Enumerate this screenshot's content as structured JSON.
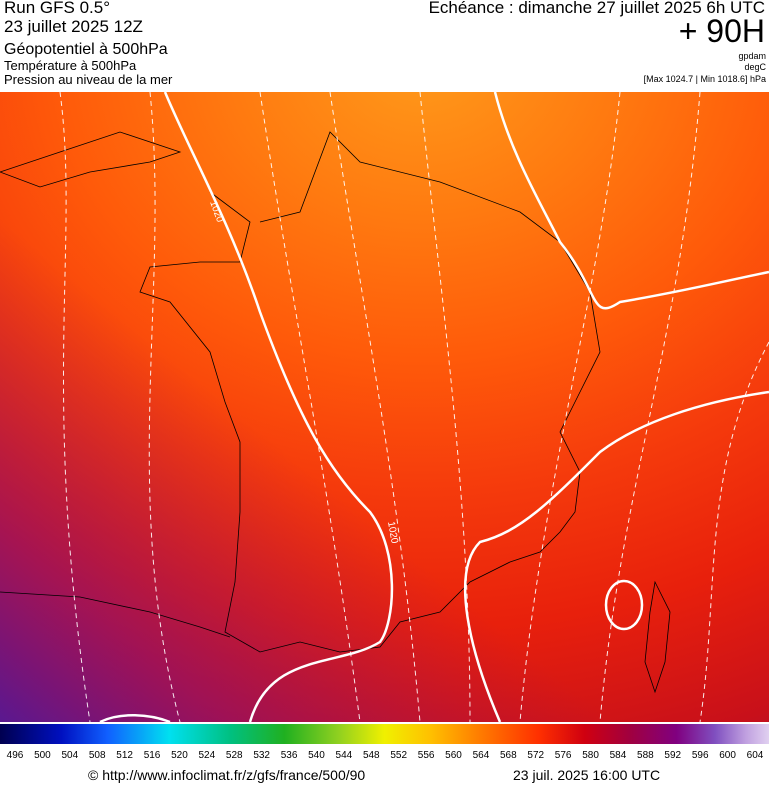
{
  "header": {
    "run": "Run GFS 0.5°",
    "date": "23 juillet 2025 12Z",
    "title": "Géopotentiel à 500hPa",
    "subtitle1": "Température à 500hPa",
    "subtitle2": "Pression au niveau de la mer",
    "valid": "Echéance : dimanche 27 juillet 2025 6h UTC",
    "lead": "+ 90H",
    "unit1": "gpdam",
    "unit2": "degC",
    "unit3": "[Max 1024.7 | Min 1018.6] hPa"
  },
  "map": {
    "contour_labels": [
      "1020",
      "1020"
    ]
  },
  "colorbar": {
    "labels": [
      496,
      500,
      504,
      508,
      512,
      516,
      520,
      524,
      528,
      532,
      536,
      540,
      544,
      548,
      552,
      556,
      560,
      564,
      568,
      572,
      576,
      580,
      584,
      588,
      592,
      596,
      600,
      604
    ]
  },
  "footer": {
    "source": "© http://www.infoclimat.fr/z/gfs/france/500/90",
    "issued": "23 juil. 2025 16:00 UTC"
  }
}
